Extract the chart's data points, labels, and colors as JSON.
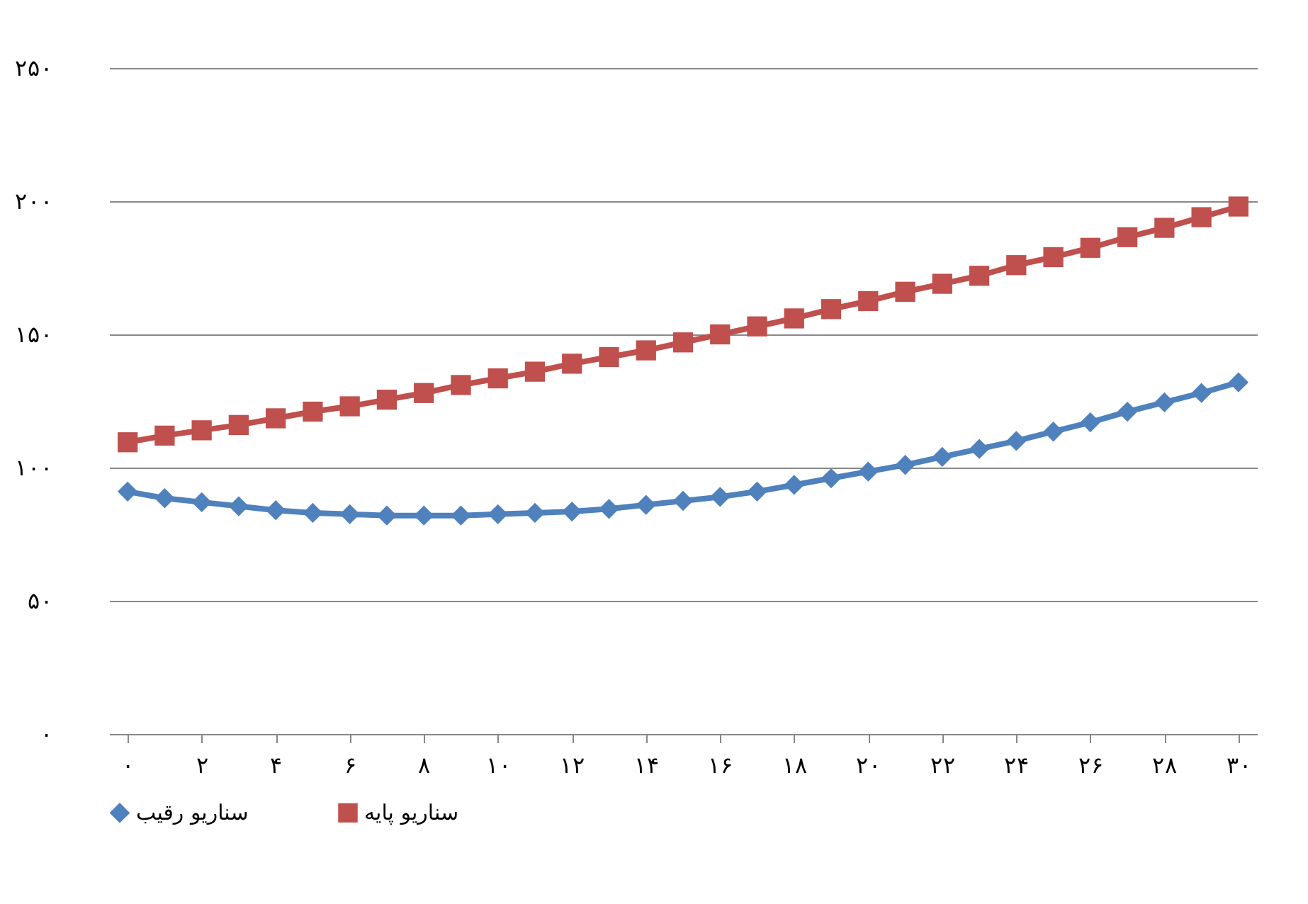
{
  "chart_data": {
    "type": "line",
    "x": [
      0,
      1,
      2,
      3,
      4,
      5,
      6,
      7,
      8,
      9,
      10,
      11,
      12,
      13,
      14,
      15,
      16,
      17,
      18,
      19,
      20,
      21,
      22,
      23,
      24,
      25,
      26,
      27,
      28,
      29,
      30
    ],
    "series": [
      {
        "name": "سناریو رقیب",
        "color": "#4f81bd",
        "marker": "diamond",
        "values": [
          91,
          88.5,
          87,
          85.5,
          84,
          83,
          82.5,
          82,
          82,
          82,
          82.5,
          83,
          83.5,
          84.5,
          86,
          87.5,
          89,
          91,
          93.5,
          96,
          98.5,
          101,
          104,
          107,
          110,
          113.5,
          117,
          121,
          124.5,
          128,
          132
        ]
      },
      {
        "name": "سناریو پایه",
        "color": "#c0504d",
        "marker": "square",
        "values": [
          109.5,
          112,
          114,
          116,
          118.5,
          121,
          123,
          125.5,
          128,
          131,
          133.5,
          136,
          139,
          141.5,
          144,
          147,
          150,
          153,
          156,
          159.5,
          162.5,
          166,
          169,
          172,
          176,
          179,
          182.5,
          186.5,
          190,
          194,
          198
        ]
      }
    ],
    "xlim": [
      -0.5,
      30.5
    ],
    "xticks": [
      {
        "value": 0,
        "label": "۰"
      },
      {
        "value": 2,
        "label": "۲"
      },
      {
        "value": 4,
        "label": "۴"
      },
      {
        "value": 6,
        "label": "۶"
      },
      {
        "value": 8,
        "label": "۸"
      },
      {
        "value": 10,
        "label": "۱۰"
      },
      {
        "value": 12,
        "label": "۱۲"
      },
      {
        "value": 14,
        "label": "۱۴"
      },
      {
        "value": 16,
        "label": "۱۶"
      },
      {
        "value": 18,
        "label": "۱۸"
      },
      {
        "value": 20,
        "label": "۲۰"
      },
      {
        "value": 22,
        "label": "۲۲"
      },
      {
        "value": 24,
        "label": "۲۴"
      },
      {
        "value": 26,
        "label": "۲۶"
      },
      {
        "value": 28,
        "label": "۲۸"
      },
      {
        "value": 30,
        "label": "۳۰"
      }
    ],
    "ylim": [
      0,
      250
    ],
    "yticks": [
      {
        "value": 0,
        "label": "۰"
      },
      {
        "value": 50,
        "label": "۵۰"
      },
      {
        "value": 100,
        "label": "۱۰۰"
      },
      {
        "value": 150,
        "label": "۱۵۰"
      },
      {
        "value": 200,
        "label": "۲۰۰"
      },
      {
        "value": 250,
        "label": "۲۵۰"
      }
    ],
    "grid": "y",
    "legend": "bottom",
    "line_style": "solid"
  }
}
